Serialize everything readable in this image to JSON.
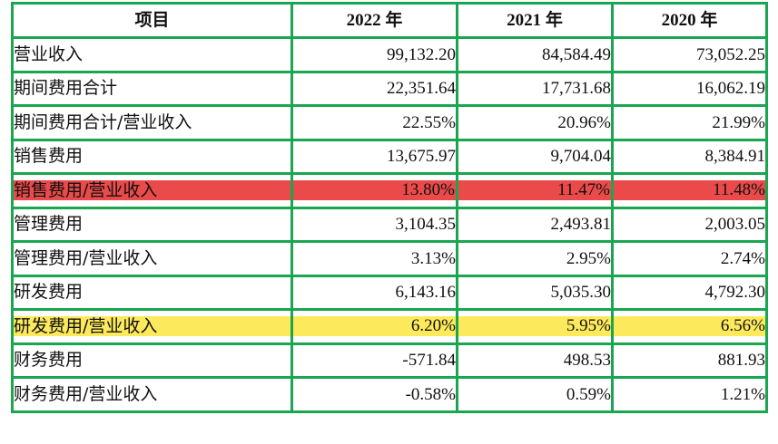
{
  "table": {
    "headers": [
      "项目",
      "2022 年",
      "2021 年",
      "2020 年"
    ],
    "rows": [
      {
        "label": "营业收入",
        "values": [
          "99,132.20",
          "84,584.49",
          "73,052.25"
        ],
        "highlight": ""
      },
      {
        "label": "期间费用合计",
        "values": [
          "22,351.64",
          "17,731.68",
          "16,062.19"
        ],
        "highlight": ""
      },
      {
        "label": "期间费用合计/营业收入",
        "values": [
          "22.55%",
          "20.96%",
          "21.99%"
        ],
        "highlight": ""
      },
      {
        "label": "销售费用",
        "values": [
          "13,675.97",
          "9,704.04",
          "8,384.91"
        ],
        "highlight": ""
      },
      {
        "label": "销售费用/营业收入",
        "values": [
          "13.80%",
          "11.47%",
          "11.48%"
        ],
        "highlight": "red"
      },
      {
        "label": "管理费用",
        "values": [
          "3,104.35",
          "2,493.81",
          "2,003.05"
        ],
        "highlight": ""
      },
      {
        "label": "管理费用/营业收入",
        "values": [
          "3.13%",
          "2.95%",
          "2.74%"
        ],
        "highlight": ""
      },
      {
        "label": "研发费用",
        "values": [
          "6,143.16",
          "5,035.30",
          "4,792.30"
        ],
        "highlight": ""
      },
      {
        "label": "研发费用/营业收入",
        "values": [
          "6.20%",
          "5.95%",
          "6.56%"
        ],
        "highlight": "yellow"
      },
      {
        "label": "财务费用",
        "values": [
          "-571.84",
          "498.53",
          "881.93"
        ],
        "highlight": ""
      },
      {
        "label": "财务费用/营业收入",
        "values": [
          "-0.58%",
          "0.59%",
          "1.21%"
        ],
        "highlight": ""
      }
    ]
  },
  "colors": {
    "border": "#1aa650",
    "highlight_red": "#ea4a4a",
    "highlight_yellow": "#fde95c"
  }
}
